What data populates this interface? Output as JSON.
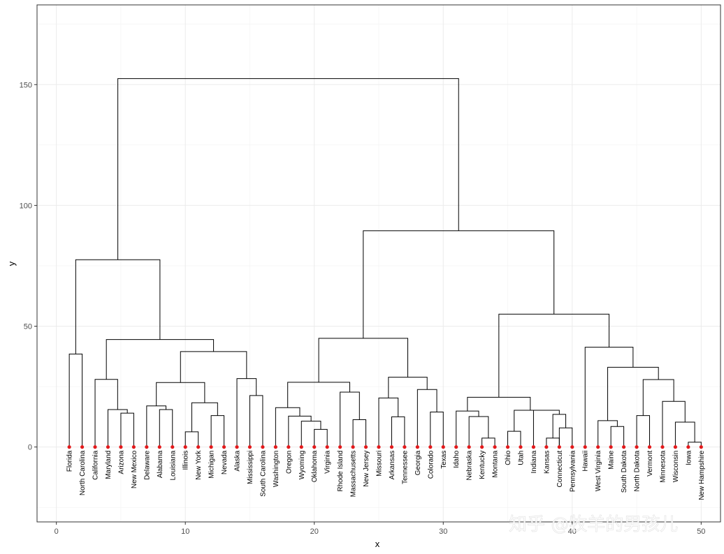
{
  "chart_data": {
    "type": "dendrogram",
    "xlabel": "x",
    "ylabel": "y",
    "xlim": [
      -1.5,
      51.5
    ],
    "ylim": [
      -31,
      183
    ],
    "x_ticks": [
      0,
      10,
      20,
      30,
      40,
      50
    ],
    "y_ticks": [
      0,
      50,
      100,
      150
    ],
    "grid": true,
    "leaf_color": "#e31a1c",
    "line_color": "#000000",
    "leaves": [
      "Florida",
      "North Carolina",
      "California",
      "Maryland",
      "Arizona",
      "New Mexico",
      "Delaware",
      "Alabama",
      "Louisiana",
      "Illinois",
      "New York",
      "Michigan",
      "Nevada",
      "Alaska",
      "Mississippi",
      "South Carolina",
      "Washington",
      "Oregon",
      "Wyoming",
      "Oklahoma",
      "Virginia",
      "Rhode Island",
      "Massachusetts",
      "New Jersey",
      "Missouri",
      "Arkansas",
      "Tennessee",
      "Georgia",
      "Colorado",
      "Texas",
      "Idaho",
      "Nebraska",
      "Kentucky",
      "Montana",
      "Ohio",
      "Utah",
      "Indiana",
      "Kansas",
      "Connecticut",
      "Pennsylvania",
      "Hawaii",
      "West Virginia",
      "Maine",
      "South Dakota",
      "North Dakota",
      "Vermont",
      "Minnesota",
      "Wisconsin",
      "Iowa",
      "New Hampshire"
    ],
    "merges": [
      {
        "l": 1,
        "r": 2,
        "h": 38.5
      },
      {
        "l": 5,
        "r": 6,
        "h": 14
      },
      {
        "l": 4,
        "r": 5.5,
        "h": 15.5
      },
      {
        "l": 3,
        "r": 4.75,
        "h": 28
      },
      {
        "l": 8,
        "r": 9,
        "h": 15.5
      },
      {
        "l": 7,
        "r": 8.5,
        "h": 17
      },
      {
        "l": 10,
        "r": 11,
        "h": 6.3
      },
      {
        "l": 12,
        "r": 13,
        "h": 13
      },
      {
        "l": 10.5,
        "r": 12.5,
        "h": 18.3
      },
      {
        "l": 7.75,
        "r": 11.5,
        "h": 26.7
      },
      {
        "l": 15,
        "r": 16,
        "h": 21.3
      },
      {
        "l": 14,
        "r": 15.5,
        "h": 28.3
      },
      {
        "l": 9.625,
        "r": 14.75,
        "h": 39.5
      },
      {
        "l": 3.875,
        "r": 12.1875,
        "h": 44.5
      },
      {
        "l": 1.5,
        "r": 8.03125,
        "h": 77.5
      },
      {
        "l": 20,
        "r": 21,
        "h": 7.3
      },
      {
        "l": 19,
        "r": 20.5,
        "h": 10.7
      },
      {
        "l": 18,
        "r": 19.75,
        "h": 12.8
      },
      {
        "l": 17,
        "r": 18.875,
        "h": 16.3
      },
      {
        "l": 23,
        "r": 24,
        "h": 11.3
      },
      {
        "l": 22,
        "r": 23.5,
        "h": 22.7
      },
      {
        "l": 17.9375,
        "r": 22.75,
        "h": 26.8
      },
      {
        "l": 26,
        "r": 27,
        "h": 12.5
      },
      {
        "l": 25,
        "r": 26.5,
        "h": 20.3
      },
      {
        "l": 29,
        "r": 30,
        "h": 14.5
      },
      {
        "l": 28,
        "r": 29.5,
        "h": 23.8
      },
      {
        "l": 25.75,
        "r": 28.75,
        "h": 28.9
      },
      {
        "l": 20.34375,
        "r": 27.25,
        "h": 45
      },
      {
        "l": 33,
        "r": 34,
        "h": 3.7
      },
      {
        "l": 32,
        "r": 33.5,
        "h": 12.6
      },
      {
        "l": 31,
        "r": 32.75,
        "h": 14.9
      },
      {
        "l": 35,
        "r": 36,
        "h": 6.5
      },
      {
        "l": 38,
        "r": 39,
        "h": 3.7
      },
      {
        "l": 39,
        "r": 40,
        "h": 7.9
      },
      {
        "l": 38.5,
        "r": 39.5,
        "h": 13.5
      },
      {
        "l": 37,
        "r": 39,
        "h": 15.2
      },
      {
        "l": 35.5,
        "r": 38,
        "h": 15.2
      },
      {
        "l": 31.875,
        "r": 36.75,
        "h": 20.6
      },
      {
        "l": 43,
        "r": 44,
        "h": 8.5
      },
      {
        "l": 42,
        "r": 43.5,
        "h": 10.9
      },
      {
        "l": 45,
        "r": 46,
        "h": 13
      },
      {
        "l": 49,
        "r": 50,
        "h": 2
      },
      {
        "l": 48,
        "r": 49.5,
        "h": 10.3
      },
      {
        "l": 47,
        "r": 48.75,
        "h": 18.9
      },
      {
        "l": 45.5,
        "r": 47.875,
        "h": 27.9
      },
      {
        "l": 42.75,
        "r": 46.6875,
        "h": 33
      },
      {
        "l": 41,
        "r": 44.71875,
        "h": 41.3
      },
      {
        "l": 34.3125,
        "r": 42.859375,
        "h": 55
      },
      {
        "l": 23.796875,
        "r": 38.5859375,
        "h": 89.5
      },
      {
        "l": 4.765625,
        "r": 31.19140625,
        "h": 152.5
      }
    ]
  },
  "watermark": {
    "text": "知乎 @牧羊的男孩儿"
  }
}
